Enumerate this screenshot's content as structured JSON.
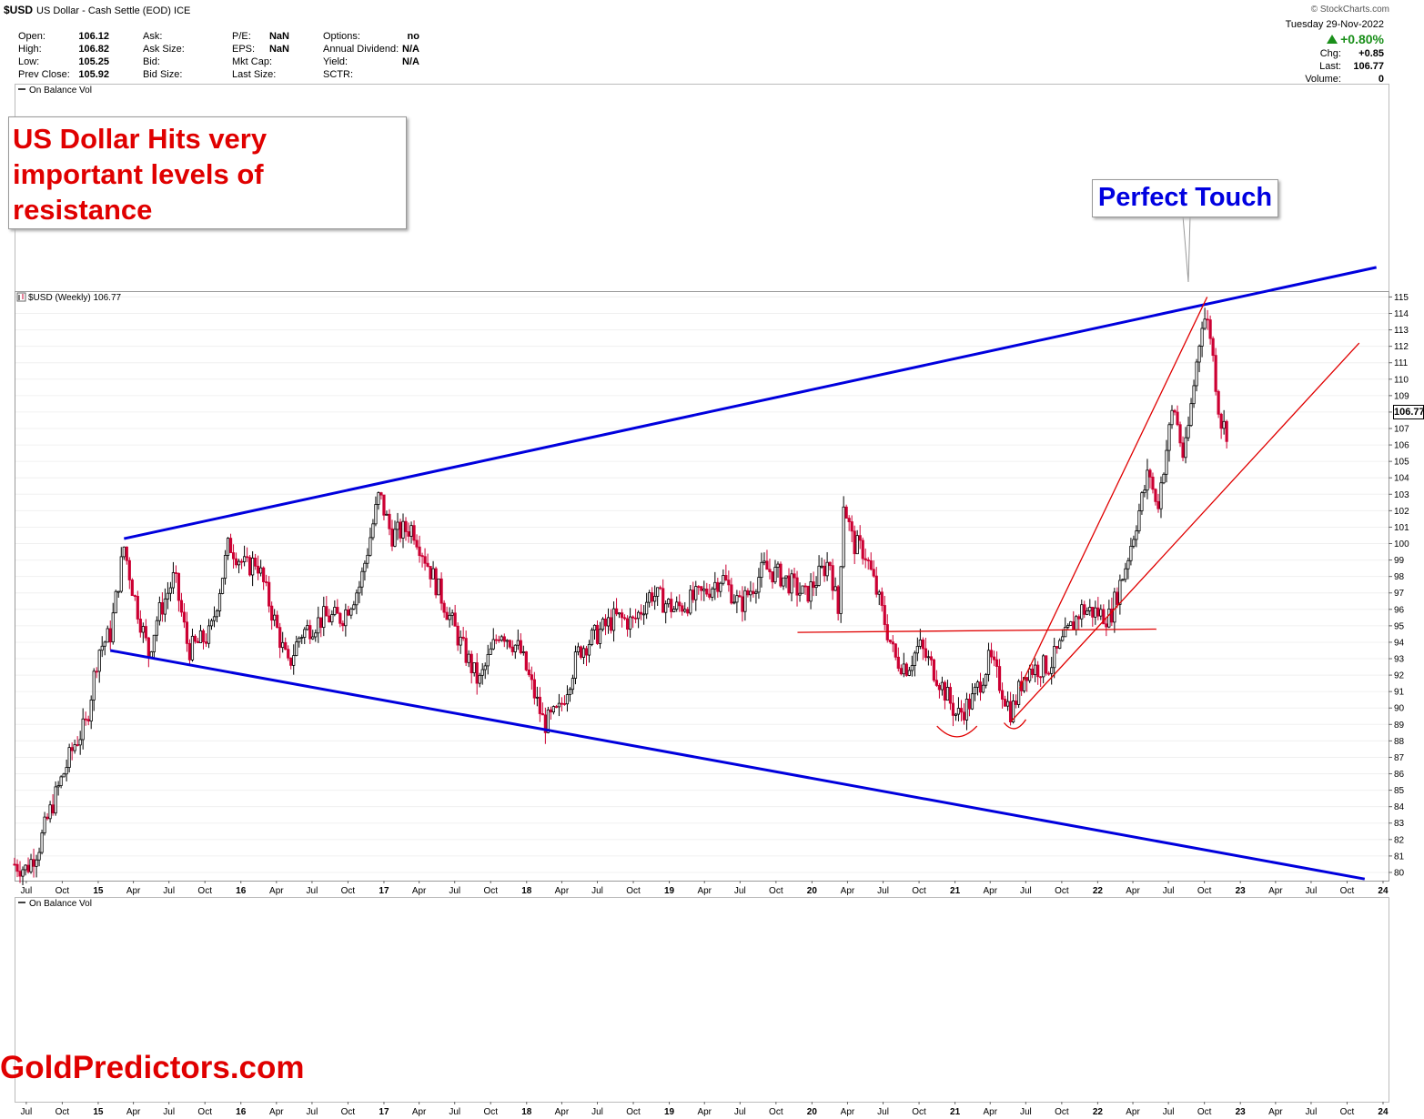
{
  "header": {
    "symbol": "$USD",
    "description": "US Dollar - Cash Settle (EOD)",
    "exchange": "ICE",
    "credit": "© StockCharts.com"
  },
  "quote": {
    "col1": [
      {
        "label": "Open:",
        "value": "106.12"
      },
      {
        "label": "High:",
        "value": "106.82"
      },
      {
        "label": "Low:",
        "value": "105.25"
      },
      {
        "label": "Prev Close:",
        "value": "105.92"
      }
    ],
    "col2": [
      {
        "label": "Ask:",
        "value": ""
      },
      {
        "label": "Ask Size:",
        "value": ""
      },
      {
        "label": "Bid:",
        "value": ""
      },
      {
        "label": "Bid Size:",
        "value": ""
      }
    ],
    "col3": [
      {
        "label": "P/E:",
        "value": "NaN"
      },
      {
        "label": "EPS:",
        "value": "NaN"
      },
      {
        "label": "Mkt Cap:",
        "value": ""
      },
      {
        "label": "Last Size:",
        "value": ""
      }
    ],
    "col4": [
      {
        "label": "Options:",
        "value": "no"
      },
      {
        "label": "Annual Dividend:",
        "value": "N/A"
      },
      {
        "label": "Yield:",
        "value": "N/A"
      },
      {
        "label": "SCTR:",
        "value": ""
      }
    ]
  },
  "right_info": {
    "date": "Tuesday  29-Nov-2022",
    "change_pct": "+0.80%",
    "chg_label": "Chg:",
    "chg_value": "+0.85",
    "last_label": "Last:",
    "last_value": "106.77",
    "volume_label": "Volume:",
    "volume_value": "0"
  },
  "panels": {
    "top_indicator": "On Balance Vol",
    "price_label": "$USD (Weekly) 106.77",
    "bottom_indicator": "On Balance Vol"
  },
  "annotations": {
    "note": "US Dollar Hits very important levels of resistance",
    "touch": "Perfect Touch",
    "watermark": "GoldPredictors.com"
  },
  "colors": {
    "up": "#000000",
    "down": "#cc0033",
    "channel": "#0000dd",
    "trend": "#e00000",
    "note_text": "#e00000",
    "touch_text": "#0000e0"
  },
  "chart_data": {
    "type": "candlestick",
    "title": "$USD (Weekly) 106.77",
    "interval": "weekly",
    "x_range": [
      "2014-06-01",
      "2024-01-15"
    ],
    "ylim": [
      79.5,
      115.3
    ],
    "y_ticks": [
      80,
      81,
      82,
      83,
      84,
      85,
      86,
      87,
      88,
      89,
      90,
      91,
      92,
      93,
      94,
      95,
      96,
      97,
      98,
      99,
      100,
      101,
      102,
      103,
      104,
      105,
      106,
      107,
      108,
      109,
      110,
      111,
      112,
      113,
      114,
      115
    ],
    "last_price": "106.77",
    "x_tick_labels": [
      {
        "date": "2014-07-01",
        "label": "Jul",
        "bold": false
      },
      {
        "date": "2014-10-01",
        "label": "Oct",
        "bold": false
      },
      {
        "date": "2015-01-01",
        "label": "15",
        "bold": true
      },
      {
        "date": "2015-04-01",
        "label": "Apr",
        "bold": false
      },
      {
        "date": "2015-07-01",
        "label": "Jul",
        "bold": false
      },
      {
        "date": "2015-10-01",
        "label": "Oct",
        "bold": false
      },
      {
        "date": "2016-01-01",
        "label": "16",
        "bold": true
      },
      {
        "date": "2016-04-01",
        "label": "Apr",
        "bold": false
      },
      {
        "date": "2016-07-01",
        "label": "Jul",
        "bold": false
      },
      {
        "date": "2016-10-01",
        "label": "Oct",
        "bold": false
      },
      {
        "date": "2017-01-01",
        "label": "17",
        "bold": true
      },
      {
        "date": "2017-04-01",
        "label": "Apr",
        "bold": false
      },
      {
        "date": "2017-07-01",
        "label": "Jul",
        "bold": false
      },
      {
        "date": "2017-10-01",
        "label": "Oct",
        "bold": false
      },
      {
        "date": "2018-01-01",
        "label": "18",
        "bold": true
      },
      {
        "date": "2018-04-01",
        "label": "Apr",
        "bold": false
      },
      {
        "date": "2018-07-01",
        "label": "Jul",
        "bold": false
      },
      {
        "date": "2018-10-01",
        "label": "Oct",
        "bold": false
      },
      {
        "date": "2019-01-01",
        "label": "19",
        "bold": true
      },
      {
        "date": "2019-04-01",
        "label": "Apr",
        "bold": false
      },
      {
        "date": "2019-07-01",
        "label": "Jul",
        "bold": false
      },
      {
        "date": "2019-10-01",
        "label": "Oct",
        "bold": false
      },
      {
        "date": "2020-01-01",
        "label": "20",
        "bold": true
      },
      {
        "date": "2020-04-01",
        "label": "Apr",
        "bold": false
      },
      {
        "date": "2020-07-01",
        "label": "Jul",
        "bold": false
      },
      {
        "date": "2020-10-01",
        "label": "Oct",
        "bold": false
      },
      {
        "date": "2021-01-01",
        "label": "21",
        "bold": true
      },
      {
        "date": "2021-04-01",
        "label": "Apr",
        "bold": false
      },
      {
        "date": "2021-07-01",
        "label": "Jul",
        "bold": false
      },
      {
        "date": "2021-10-01",
        "label": "Oct",
        "bold": false
      },
      {
        "date": "2022-01-01",
        "label": "22",
        "bold": true
      },
      {
        "date": "2022-04-01",
        "label": "Apr",
        "bold": false
      },
      {
        "date": "2022-07-01",
        "label": "Jul",
        "bold": false
      },
      {
        "date": "2022-10-01",
        "label": "Oct",
        "bold": false
      },
      {
        "date": "2023-01-01",
        "label": "23",
        "bold": true
      },
      {
        "date": "2023-04-01",
        "label": "Apr",
        "bold": false
      },
      {
        "date": "2023-07-01",
        "label": "Jul",
        "bold": false
      },
      {
        "date": "2023-10-01",
        "label": "Oct",
        "bold": false
      },
      {
        "date": "2024-01-01",
        "label": "24",
        "bold": true
      }
    ],
    "price_anchors": [
      {
        "date": "2014-06-01",
        "close": 80.5
      },
      {
        "date": "2014-07-01",
        "close": 80.2
      },
      {
        "date": "2014-08-01",
        "close": 81.5
      },
      {
        "date": "2014-09-01",
        "close": 83.8
      },
      {
        "date": "2014-10-01",
        "close": 85.8
      },
      {
        "date": "2014-11-01",
        "close": 87.8
      },
      {
        "date": "2014-12-01",
        "close": 89.0
      },
      {
        "date": "2015-01-01",
        "close": 93.5
      },
      {
        "date": "2015-02-01",
        "close": 94.5
      },
      {
        "date": "2015-03-08",
        "close": 99.8
      },
      {
        "date": "2015-04-01",
        "close": 97.0
      },
      {
        "date": "2015-05-10",
        "close": 93.3
      },
      {
        "date": "2015-06-01",
        "close": 95.5
      },
      {
        "date": "2015-07-15",
        "close": 98.0
      },
      {
        "date": "2015-08-20",
        "close": 93.5
      },
      {
        "date": "2015-10-15",
        "close": 94.5
      },
      {
        "date": "2015-12-01",
        "close": 100.0
      },
      {
        "date": "2016-01-15",
        "close": 98.5
      },
      {
        "date": "2016-02-10",
        "close": 99.0
      },
      {
        "date": "2016-05-01",
        "close": 92.5
      },
      {
        "date": "2016-06-01",
        "close": 94.5
      },
      {
        "date": "2016-08-01",
        "close": 95.5
      },
      {
        "date": "2016-09-15",
        "close": 95.5
      },
      {
        "date": "2016-11-01",
        "close": 97.5
      },
      {
        "date": "2016-12-20",
        "close": 103.0
      },
      {
        "date": "2017-01-20",
        "close": 100.5
      },
      {
        "date": "2017-03-15",
        "close": 101.0
      },
      {
        "date": "2017-05-15",
        "close": 97.5
      },
      {
        "date": "2017-07-15",
        "close": 94.0
      },
      {
        "date": "2017-09-01",
        "close": 91.5
      },
      {
        "date": "2017-10-25",
        "close": 94.8
      },
      {
        "date": "2017-12-15",
        "close": 93.5
      },
      {
        "date": "2018-02-15",
        "close": 89.0
      },
      {
        "date": "2018-03-25",
        "close": 89.8
      },
      {
        "date": "2018-05-15",
        "close": 93.5
      },
      {
        "date": "2018-08-15",
        "close": 95.5
      },
      {
        "date": "2018-10-01",
        "close": 95.2
      },
      {
        "date": "2018-11-15",
        "close": 97.0
      },
      {
        "date": "2019-01-15",
        "close": 96.0
      },
      {
        "date": "2019-04-01",
        "close": 97.0
      },
      {
        "date": "2019-05-15",
        "close": 98.0
      },
      {
        "date": "2019-07-01",
        "close": 96.2
      },
      {
        "date": "2019-09-01",
        "close": 98.5
      },
      {
        "date": "2019-10-15",
        "close": 98.0
      },
      {
        "date": "2019-12-15",
        "close": 96.8
      },
      {
        "date": "2020-02-15",
        "close": 99.0
      },
      {
        "date": "2020-03-10",
        "close": 95.5
      },
      {
        "date": "2020-03-20",
        "close": 102.8
      },
      {
        "date": "2020-04-15",
        "close": 100.0
      },
      {
        "date": "2020-05-15",
        "close": 99.5
      },
      {
        "date": "2020-06-15",
        "close": 97.0
      },
      {
        "date": "2020-07-31",
        "close": 93.0
      },
      {
        "date": "2020-09-01",
        "close": 92.5
      },
      {
        "date": "2020-10-01",
        "close": 93.8
      },
      {
        "date": "2020-11-15",
        "close": 92.0
      },
      {
        "date": "2021-01-06",
        "close": 89.5
      },
      {
        "date": "2021-02-15",
        "close": 90.5
      },
      {
        "date": "2021-03-31",
        "close": 93.0
      },
      {
        "date": "2021-05-25",
        "close": 89.7
      },
      {
        "date": "2021-07-01",
        "close": 92.3
      },
      {
        "date": "2021-09-01",
        "close": 92.6
      },
      {
        "date": "2021-11-20",
        "close": 96.0
      },
      {
        "date": "2022-01-01",
        "close": 95.8
      },
      {
        "date": "2022-02-01",
        "close": 95.5
      },
      {
        "date": "2022-03-15",
        "close": 98.8
      },
      {
        "date": "2022-05-13",
        "close": 104.5
      },
      {
        "date": "2022-06-01",
        "close": 102.0
      },
      {
        "date": "2022-07-14",
        "close": 108.5
      },
      {
        "date": "2022-08-10",
        "close": 105.0
      },
      {
        "date": "2022-09-27",
        "close": 114.0
      },
      {
        "date": "2022-10-15",
        "close": 113.0
      },
      {
        "date": "2022-11-10",
        "close": 107.5
      },
      {
        "date": "2022-11-29",
        "close": 106.8
      }
    ],
    "channel_lines": [
      {
        "name": "upper-channel",
        "from": {
          "date": "2015-03-08",
          "value": 100.3
        },
        "to": {
          "date": "2023-12-15",
          "value": 116.8
        }
      },
      {
        "name": "lower-channel",
        "from": {
          "date": "2015-02-01",
          "value": 93.5
        },
        "to": {
          "date": "2023-11-15",
          "value": 79.6
        }
      }
    ],
    "trend_lines": [
      {
        "name": "support-line",
        "from": {
          "date": "2021-05-25",
          "value": 89.2
        },
        "to": {
          "date": "2023-11-01",
          "value": 112.2
        }
      },
      {
        "name": "steep-line",
        "from": {
          "date": "2021-06-15",
          "value": 91.2
        },
        "to": {
          "date": "2022-10-08",
          "value": 115.0
        }
      },
      {
        "name": "neckline",
        "from": {
          "date": "2019-11-25",
          "value": 94.6
        },
        "to": {
          "date": "2022-05-31",
          "value": 94.8
        }
      }
    ]
  }
}
